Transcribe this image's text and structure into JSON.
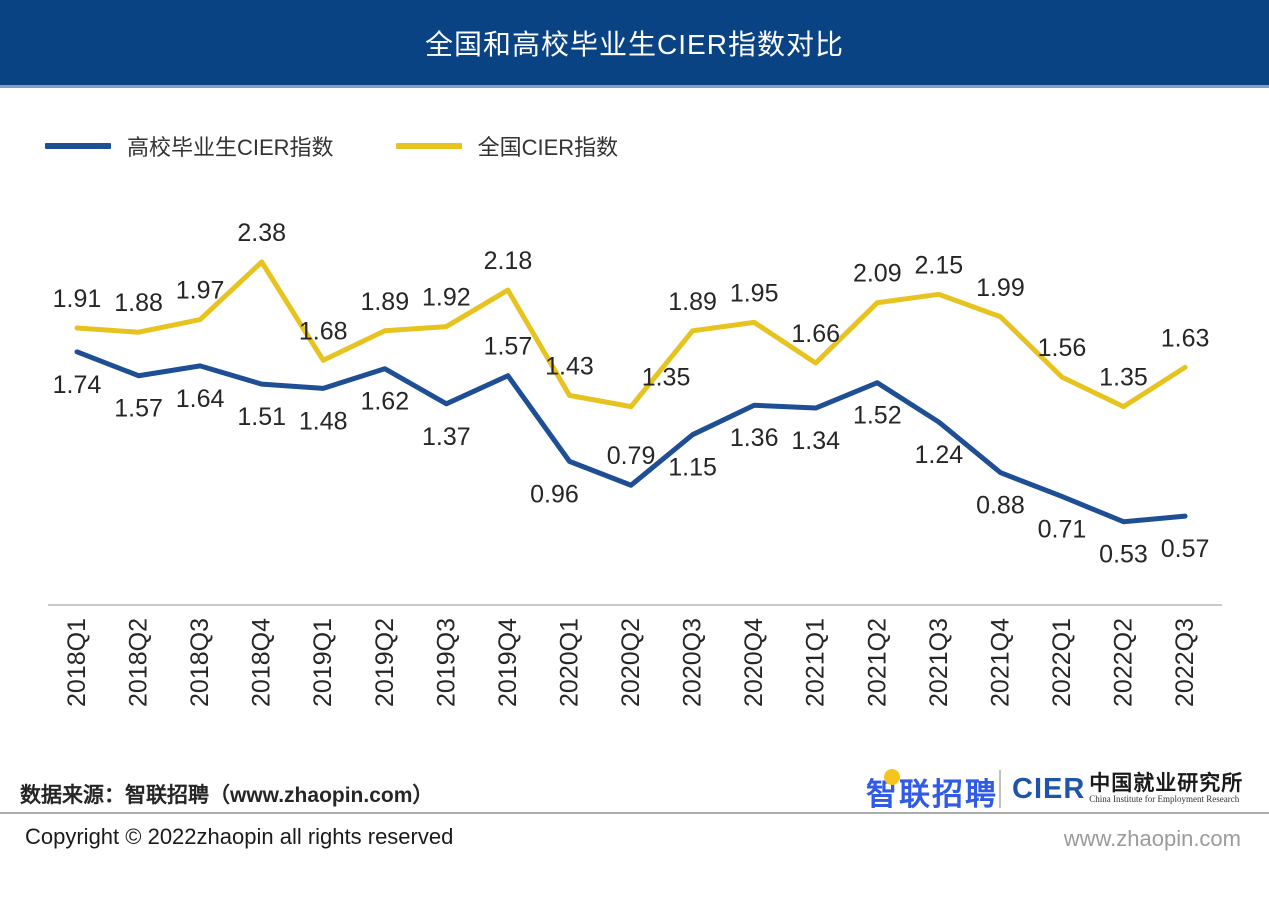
{
  "header": {
    "title": "全国和高校毕业生CIER指数对比"
  },
  "legend": [
    {
      "label": "高校毕业生CIER指数",
      "color": "#1E4E94"
    },
    {
      "label": "全国CIER指数",
      "color": "#E7C31F"
    }
  ],
  "chart_data": {
    "type": "line",
    "title": "全国和高校毕业生CIER指数对比",
    "xlabel": "",
    "ylabel": "",
    "ylim": [
      0.4,
      2.5
    ],
    "grid": false,
    "legend_position": "top-left",
    "value_labels": true,
    "categories": [
      "2018Q1",
      "2018Q2",
      "2018Q3",
      "2018Q4",
      "2019Q1",
      "2019Q2",
      "2019Q3",
      "2019Q4",
      "2020Q1",
      "2020Q2",
      "2020Q3",
      "2020Q4",
      "2021Q1",
      "2021Q2",
      "2021Q3",
      "2021Q4",
      "2022Q1",
      "2022Q2",
      "2022Q3"
    ],
    "series": [
      {
        "name": "高校毕业生CIER指数",
        "color": "#1E4E94",
        "values": [
          1.74,
          1.57,
          1.64,
          1.51,
          1.48,
          1.62,
          1.37,
          1.57,
          0.96,
          0.79,
          1.15,
          1.36,
          1.34,
          1.52,
          1.24,
          0.88,
          0.71,
          0.53,
          0.57
        ],
        "label_default": "below",
        "label_positions": {
          "7": "above",
          "9": "above"
        },
        "label_dx": {
          "8": -15
        }
      },
      {
        "name": "全国CIER指数",
        "color": "#E7C31F",
        "values": [
          1.91,
          1.88,
          1.97,
          2.38,
          1.68,
          1.89,
          1.92,
          2.18,
          1.43,
          1.35,
          1.89,
          1.95,
          1.66,
          2.09,
          2.15,
          1.99,
          1.56,
          1.35,
          1.63
        ],
        "label_default": "above",
        "label_positions": {},
        "label_dx": {
          "9": 35
        }
      }
    ]
  },
  "footer": {
    "source": "数据来源：智联招聘（www.zhaopin.com）",
    "copyright": "Copyright ©  2022zhaopin all rights reserved",
    "website": "www.zhaopin.com",
    "zhaopin_logo": "智联招聘",
    "cier_acronym": "CIER",
    "cier_cn": "中国就业研究所",
    "cier_en": "China Institute for Employment Research"
  }
}
